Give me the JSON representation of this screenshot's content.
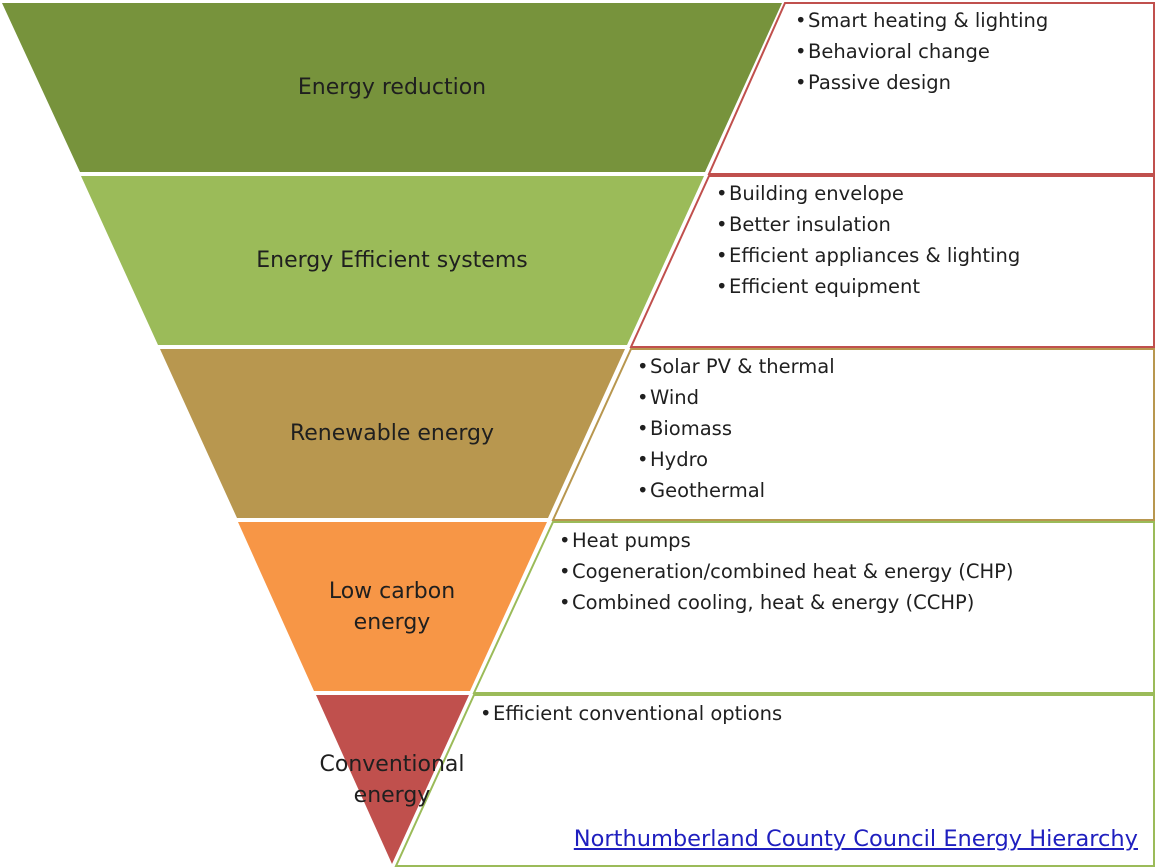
{
  "levels": [
    {
      "id": "reduction",
      "label_lines": [
        "Energy reduction"
      ],
      "fill": "#77933c",
      "border": "#c0504d",
      "bullets": [
        "Smart heating & lighting",
        "Behavioral change",
        "Passive design"
      ]
    },
    {
      "id": "efficient-systems",
      "label_lines": [
        "Energy Efficient systems"
      ],
      "fill": "#9bbb59",
      "border": "#c0504d",
      "bullets": [
        "Building envelope",
        "Better insulation",
        "Efficient appliances & lighting",
        "Efficient equipment"
      ]
    },
    {
      "id": "renewable",
      "label_lines": [
        "Renewable energy"
      ],
      "fill": "#b8974f",
      "border": "#b8974f",
      "bullets": [
        "Solar PV & thermal",
        "Wind",
        "Biomass",
        "Hydro",
        "Geothermal"
      ]
    },
    {
      "id": "low-carbon",
      "label_lines": [
        "Low carbon",
        "energy"
      ],
      "fill": "#f79646",
      "border": "#9bbb59",
      "bullets": [
        "Heat pumps",
        "Cogeneration/combined heat & energy (CHP)",
        "Combined cooling, heat & energy (CCHP)"
      ]
    },
    {
      "id": "conventional",
      "label_lines": [
        "Conventional",
        "energy"
      ],
      "fill": "#c0504d",
      "border": "#9bbb59",
      "bullets": [
        "Efficient conventional options"
      ]
    }
  ],
  "source_link": "Northumberland County Council Energy Hierarchy"
}
